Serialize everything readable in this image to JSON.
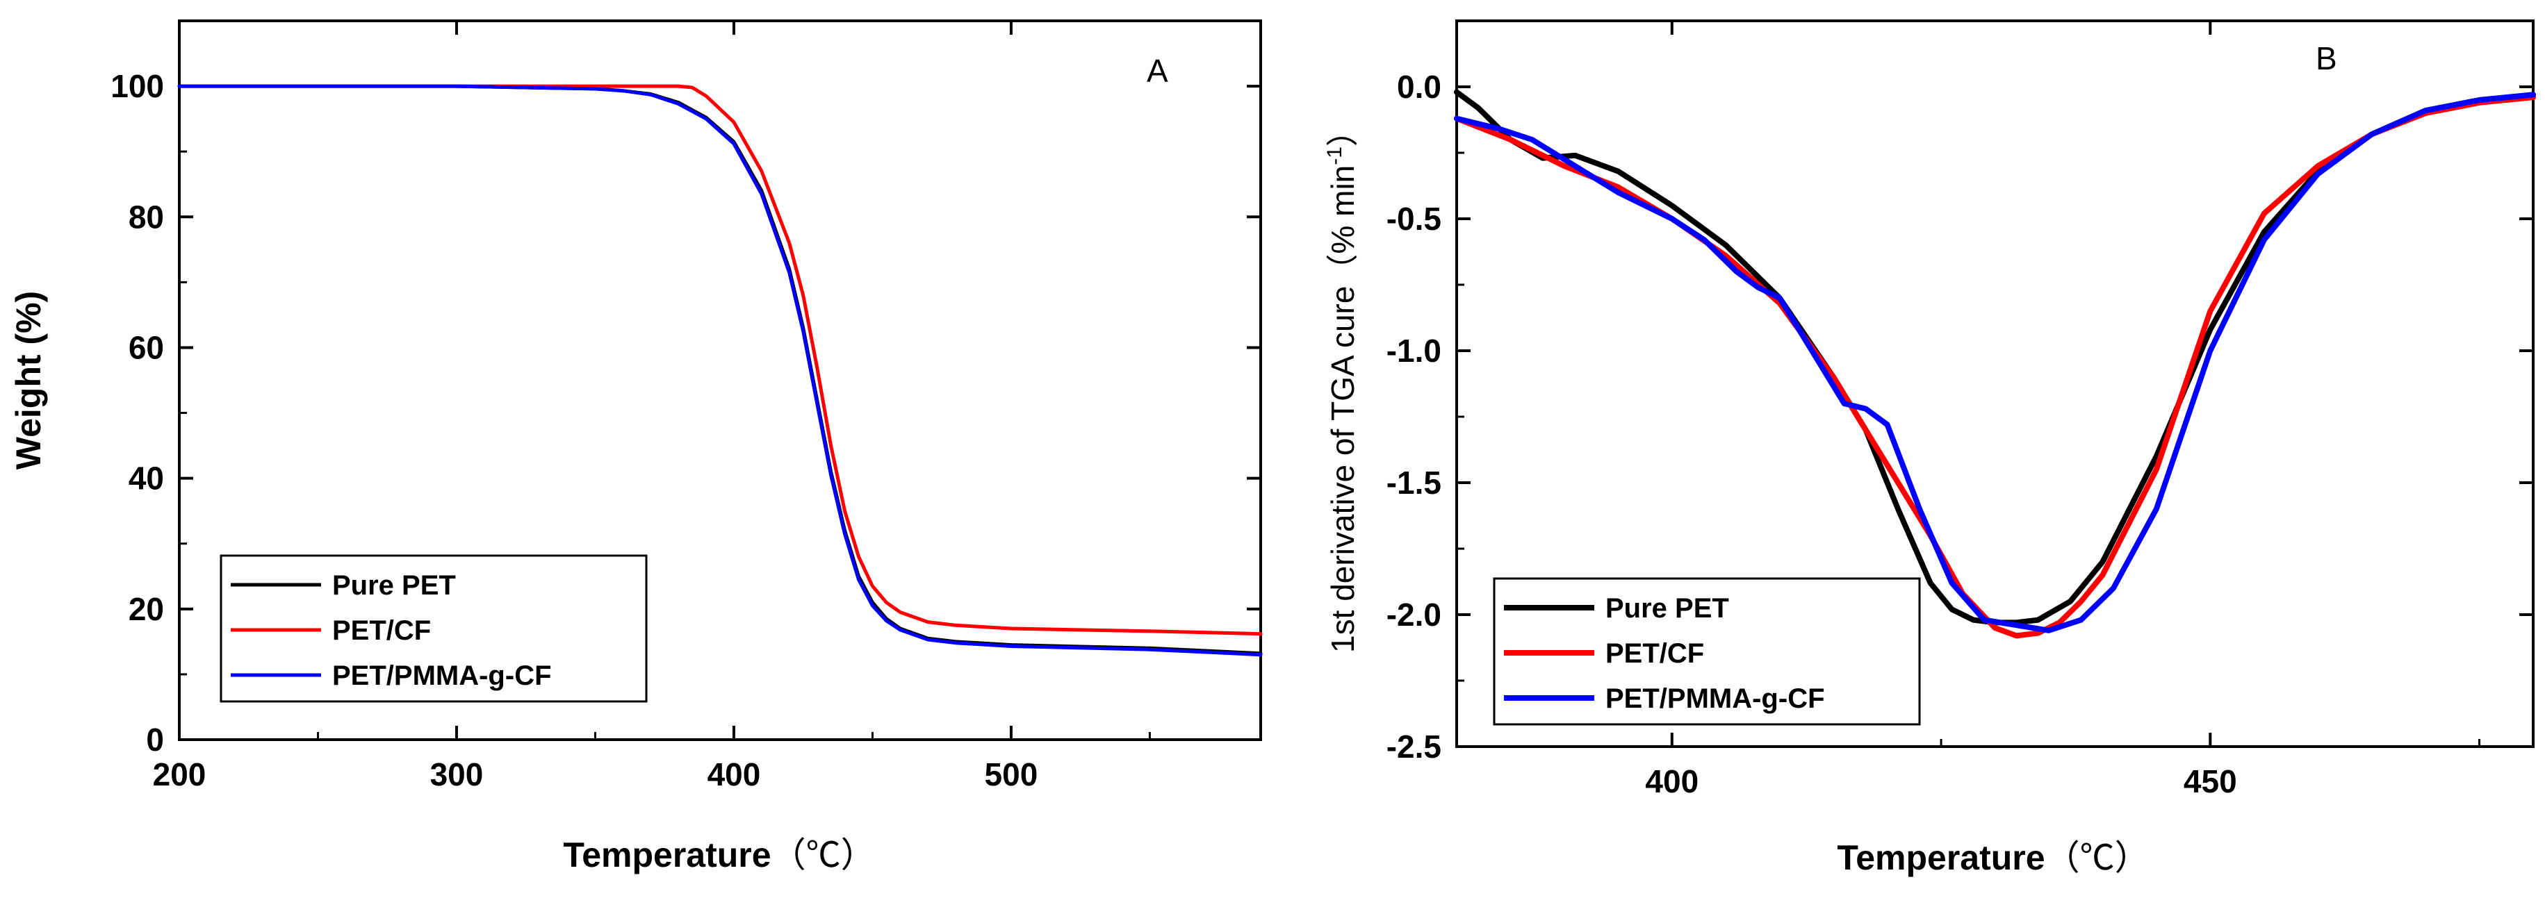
{
  "chart_data": [
    {
      "type": "line",
      "panel_label": "A",
      "title": "",
      "xlabel": "Temperature",
      "xlabel_unit": "（℃）",
      "ylabel": "Weight (%)",
      "xlim": [
        200,
        590
      ],
      "ylim": [
        0,
        110
      ],
      "xticks": [
        200,
        300,
        400,
        500
      ],
      "yticks": [
        0,
        20,
        40,
        60,
        80,
        100
      ],
      "legend_position": "bottom-left",
      "series": [
        {
          "name": "Pure PET",
          "color": "#000000",
          "x": [
            200,
            300,
            350,
            360,
            370,
            380,
            390,
            400,
            410,
            420,
            425,
            430,
            435,
            440,
            445,
            450,
            455,
            460,
            470,
            480,
            500,
            550,
            590
          ],
          "y": [
            100,
            100,
            99.6,
            99.3,
            98.8,
            97.5,
            95.2,
            91.5,
            84,
            72,
            63,
            52,
            41,
            32,
            25,
            21,
            18.5,
            17,
            15.5,
            15,
            14.5,
            14,
            13.2
          ]
        },
        {
          "name": "PET/CF",
          "color": "#ff0000",
          "x": [
            200,
            300,
            350,
            370,
            380,
            385,
            390,
            400,
            410,
            420,
            425,
            430,
            435,
            440,
            445,
            450,
            455,
            460,
            470,
            480,
            500,
            550,
            590
          ],
          "y": [
            100,
            100,
            100,
            100,
            100,
            99.8,
            98.5,
            94.5,
            87,
            76,
            68,
            57,
            45,
            35,
            28,
            23.5,
            21,
            19.5,
            18,
            17.5,
            17,
            16.6,
            16.2
          ]
        },
        {
          "name": "PET/PMMA-g-CF",
          "color": "#0000ff",
          "x": [
            200,
            300,
            350,
            360,
            370,
            380,
            390,
            400,
            410,
            420,
            425,
            430,
            435,
            440,
            445,
            450,
            455,
            460,
            470,
            480,
            500,
            550,
            590
          ],
          "y": [
            100,
            100,
            99.6,
            99.3,
            98.7,
            97.3,
            95,
            91.2,
            83.5,
            71.5,
            62.5,
            51.5,
            40.5,
            31.5,
            24.5,
            20.5,
            18.2,
            16.8,
            15.3,
            14.8,
            14.3,
            13.8,
            13
          ]
        }
      ]
    },
    {
      "type": "line",
      "panel_label": "B",
      "title": "",
      "xlabel": "Temperature",
      "xlabel_unit": "（℃）",
      "ylabel": "1st derivative of TGA cure（% min",
      "ylabel_sup": "-1",
      "ylabel_end": "）",
      "xlim": [
        380,
        480
      ],
      "ylim": [
        -2.5,
        0.25
      ],
      "xticks": [
        400,
        450
      ],
      "yticks": [
        0.0,
        -0.5,
        -1.0,
        -1.5,
        -2.0,
        -2.5
      ],
      "ytick_labels": [
        "0.0",
        "-0.5",
        "-1.0",
        "-1.5",
        "-2.0",
        "-2.5"
      ],
      "legend_position": "bottom-left",
      "series": [
        {
          "name": "Pure PET",
          "color": "#000000",
          "x": [
            380,
            382,
            385,
            388,
            391,
            395,
            400,
            405,
            410,
            415,
            418,
            421,
            424,
            426,
            428,
            430,
            432,
            434,
            437,
            440,
            445,
            450,
            455,
            460,
            465,
            470,
            475,
            480
          ],
          "y": [
            -0.02,
            -0.08,
            -0.2,
            -0.27,
            -0.26,
            -0.32,
            -0.45,
            -0.6,
            -0.8,
            -1.1,
            -1.3,
            -1.6,
            -1.88,
            -1.98,
            -2.02,
            -2.03,
            -2.03,
            -2.02,
            -1.95,
            -1.8,
            -1.4,
            -0.92,
            -0.55,
            -0.32,
            -0.18,
            -0.09,
            -0.05,
            -0.03
          ]
        },
        {
          "name": "PET/CF",
          "color": "#ff0000",
          "x": [
            380,
            385,
            390,
            395,
            400,
            405,
            410,
            415,
            418,
            421,
            424,
            427,
            430,
            432,
            434,
            436,
            438,
            440,
            445,
            450,
            455,
            460,
            465,
            470,
            475,
            480
          ],
          "y": [
            -0.12,
            -0.2,
            -0.3,
            -0.38,
            -0.5,
            -0.64,
            -0.82,
            -1.1,
            -1.3,
            -1.5,
            -1.7,
            -1.92,
            -2.05,
            -2.08,
            -2.07,
            -2.03,
            -1.95,
            -1.85,
            -1.45,
            -0.85,
            -0.48,
            -0.3,
            -0.18,
            -0.1,
            -0.06,
            -0.04
          ]
        },
        {
          "name": "PET/PMMA-g-CF",
          "color": "#0000ff",
          "x": [
            380,
            384,
            387,
            391,
            395,
            400,
            403,
            406,
            408,
            410,
            413,
            416,
            418,
            420,
            423,
            426,
            429,
            432,
            435,
            438,
            441,
            445,
            450,
            455,
            460,
            465,
            470,
            475,
            480
          ],
          "y": [
            -0.12,
            -0.16,
            -0.2,
            -0.3,
            -0.4,
            -0.5,
            -0.58,
            -0.7,
            -0.76,
            -0.8,
            -1.0,
            -1.2,
            -1.22,
            -1.28,
            -1.6,
            -1.88,
            -2.02,
            -2.04,
            -2.06,
            -2.02,
            -1.9,
            -1.6,
            -1.0,
            -0.58,
            -0.33,
            -0.18,
            -0.09,
            -0.05,
            -0.03
          ]
        }
      ]
    }
  ]
}
